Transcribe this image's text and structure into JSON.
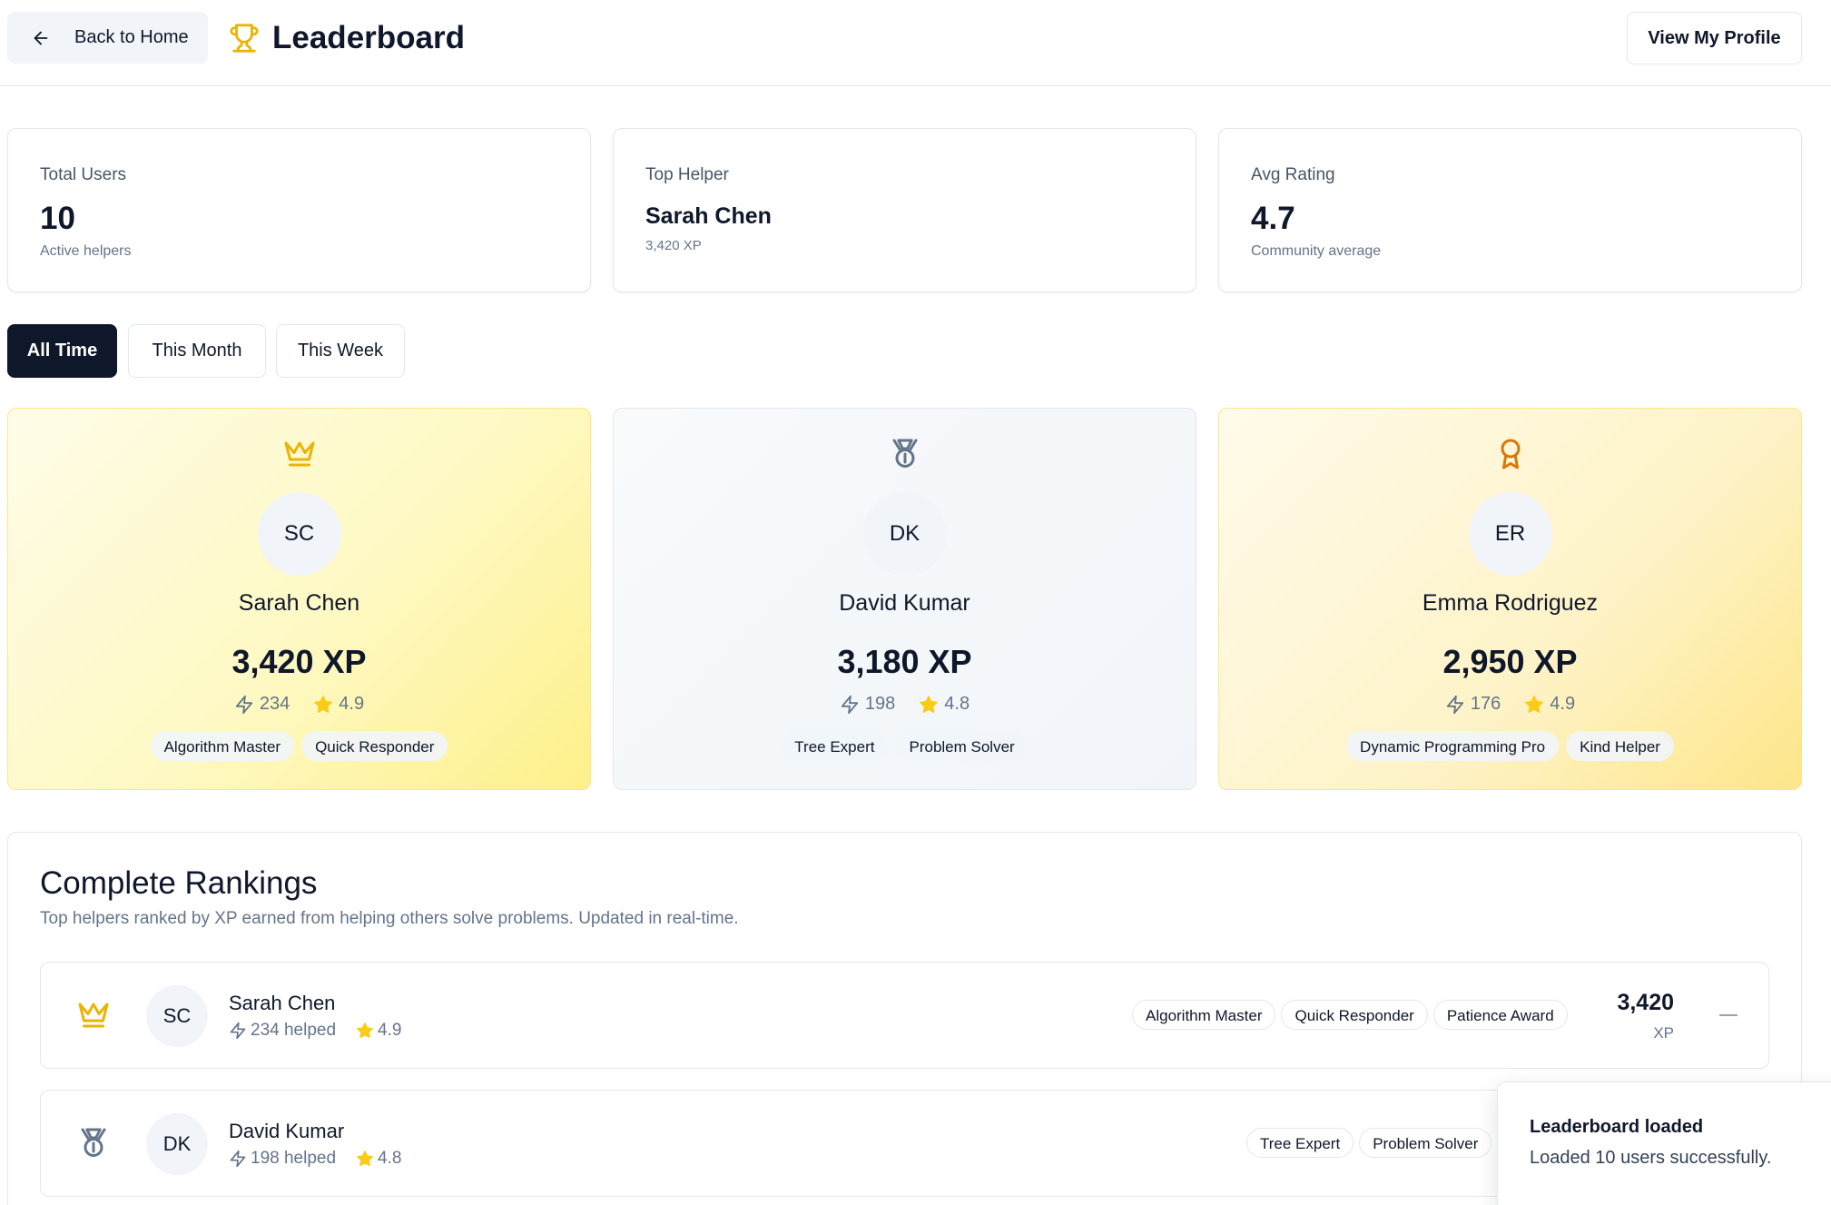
{
  "header": {
    "back_label": "Back to Home",
    "title": "Leaderboard",
    "profile_label": "View My Profile"
  },
  "stats": [
    {
      "label": "Total Users",
      "value": "10",
      "sub": "Active helpers"
    },
    {
      "label": "Top Helper",
      "value": "Sarah Chen",
      "sub": "3,420 XP"
    },
    {
      "label": "Avg Rating",
      "value": "4.7",
      "sub": "Community average"
    }
  ],
  "tabs": [
    {
      "label": "All Time",
      "active": true
    },
    {
      "label": "This Month",
      "active": false
    },
    {
      "label": "This Week",
      "active": false
    }
  ],
  "podium": [
    {
      "rank_icon": "crown-icon",
      "initials": "SC",
      "name": "Sarah Chen",
      "xp": "3,420 XP",
      "helped": "234",
      "rating": "4.9",
      "badges": [
        "Algorithm Master",
        "Quick Responder"
      ]
    },
    {
      "rank_icon": "medal-icon",
      "initials": "DK",
      "name": "David Kumar",
      "xp": "3,180 XP",
      "helped": "198",
      "rating": "4.8",
      "badges": [
        "Tree Expert",
        "Problem Solver"
      ]
    },
    {
      "rank_icon": "award-icon",
      "initials": "ER",
      "name": "Emma Rodriguez",
      "xp": "2,950 XP",
      "helped": "176",
      "rating": "4.9",
      "badges": [
        "Dynamic Programming Pro",
        "Kind Helper"
      ]
    }
  ],
  "rankings": {
    "title": "Complete Rankings",
    "subtitle": "Top helpers ranked by XP earned from helping others solve problems. Updated in real-time.",
    "rows": [
      {
        "rank_icon": "crown-icon",
        "initials": "SC",
        "name": "Sarah Chen",
        "helped": "234 helped",
        "rating": "4.9",
        "badges": [
          "Algorithm Master",
          "Quick Responder",
          "Patience Award"
        ],
        "xp": "3,420",
        "xp_unit": "XP",
        "trend": "—"
      },
      {
        "rank_icon": "medal-icon",
        "initials": "DK",
        "name": "David Kumar",
        "helped": "198 helped",
        "rating": "4.8",
        "badges": [
          "Tree Expert",
          "Problem Solver"
        ],
        "xp": "",
        "xp_unit": "",
        "trend": ""
      }
    ]
  },
  "toast": {
    "title": "Leaderboard loaded",
    "description": "Loaded 10 users successfully."
  },
  "colors": {
    "gold": "#eab308",
    "silver": "#64748b",
    "bronze": "#d97706",
    "star": "#facc15",
    "dark": "#0f172a"
  }
}
